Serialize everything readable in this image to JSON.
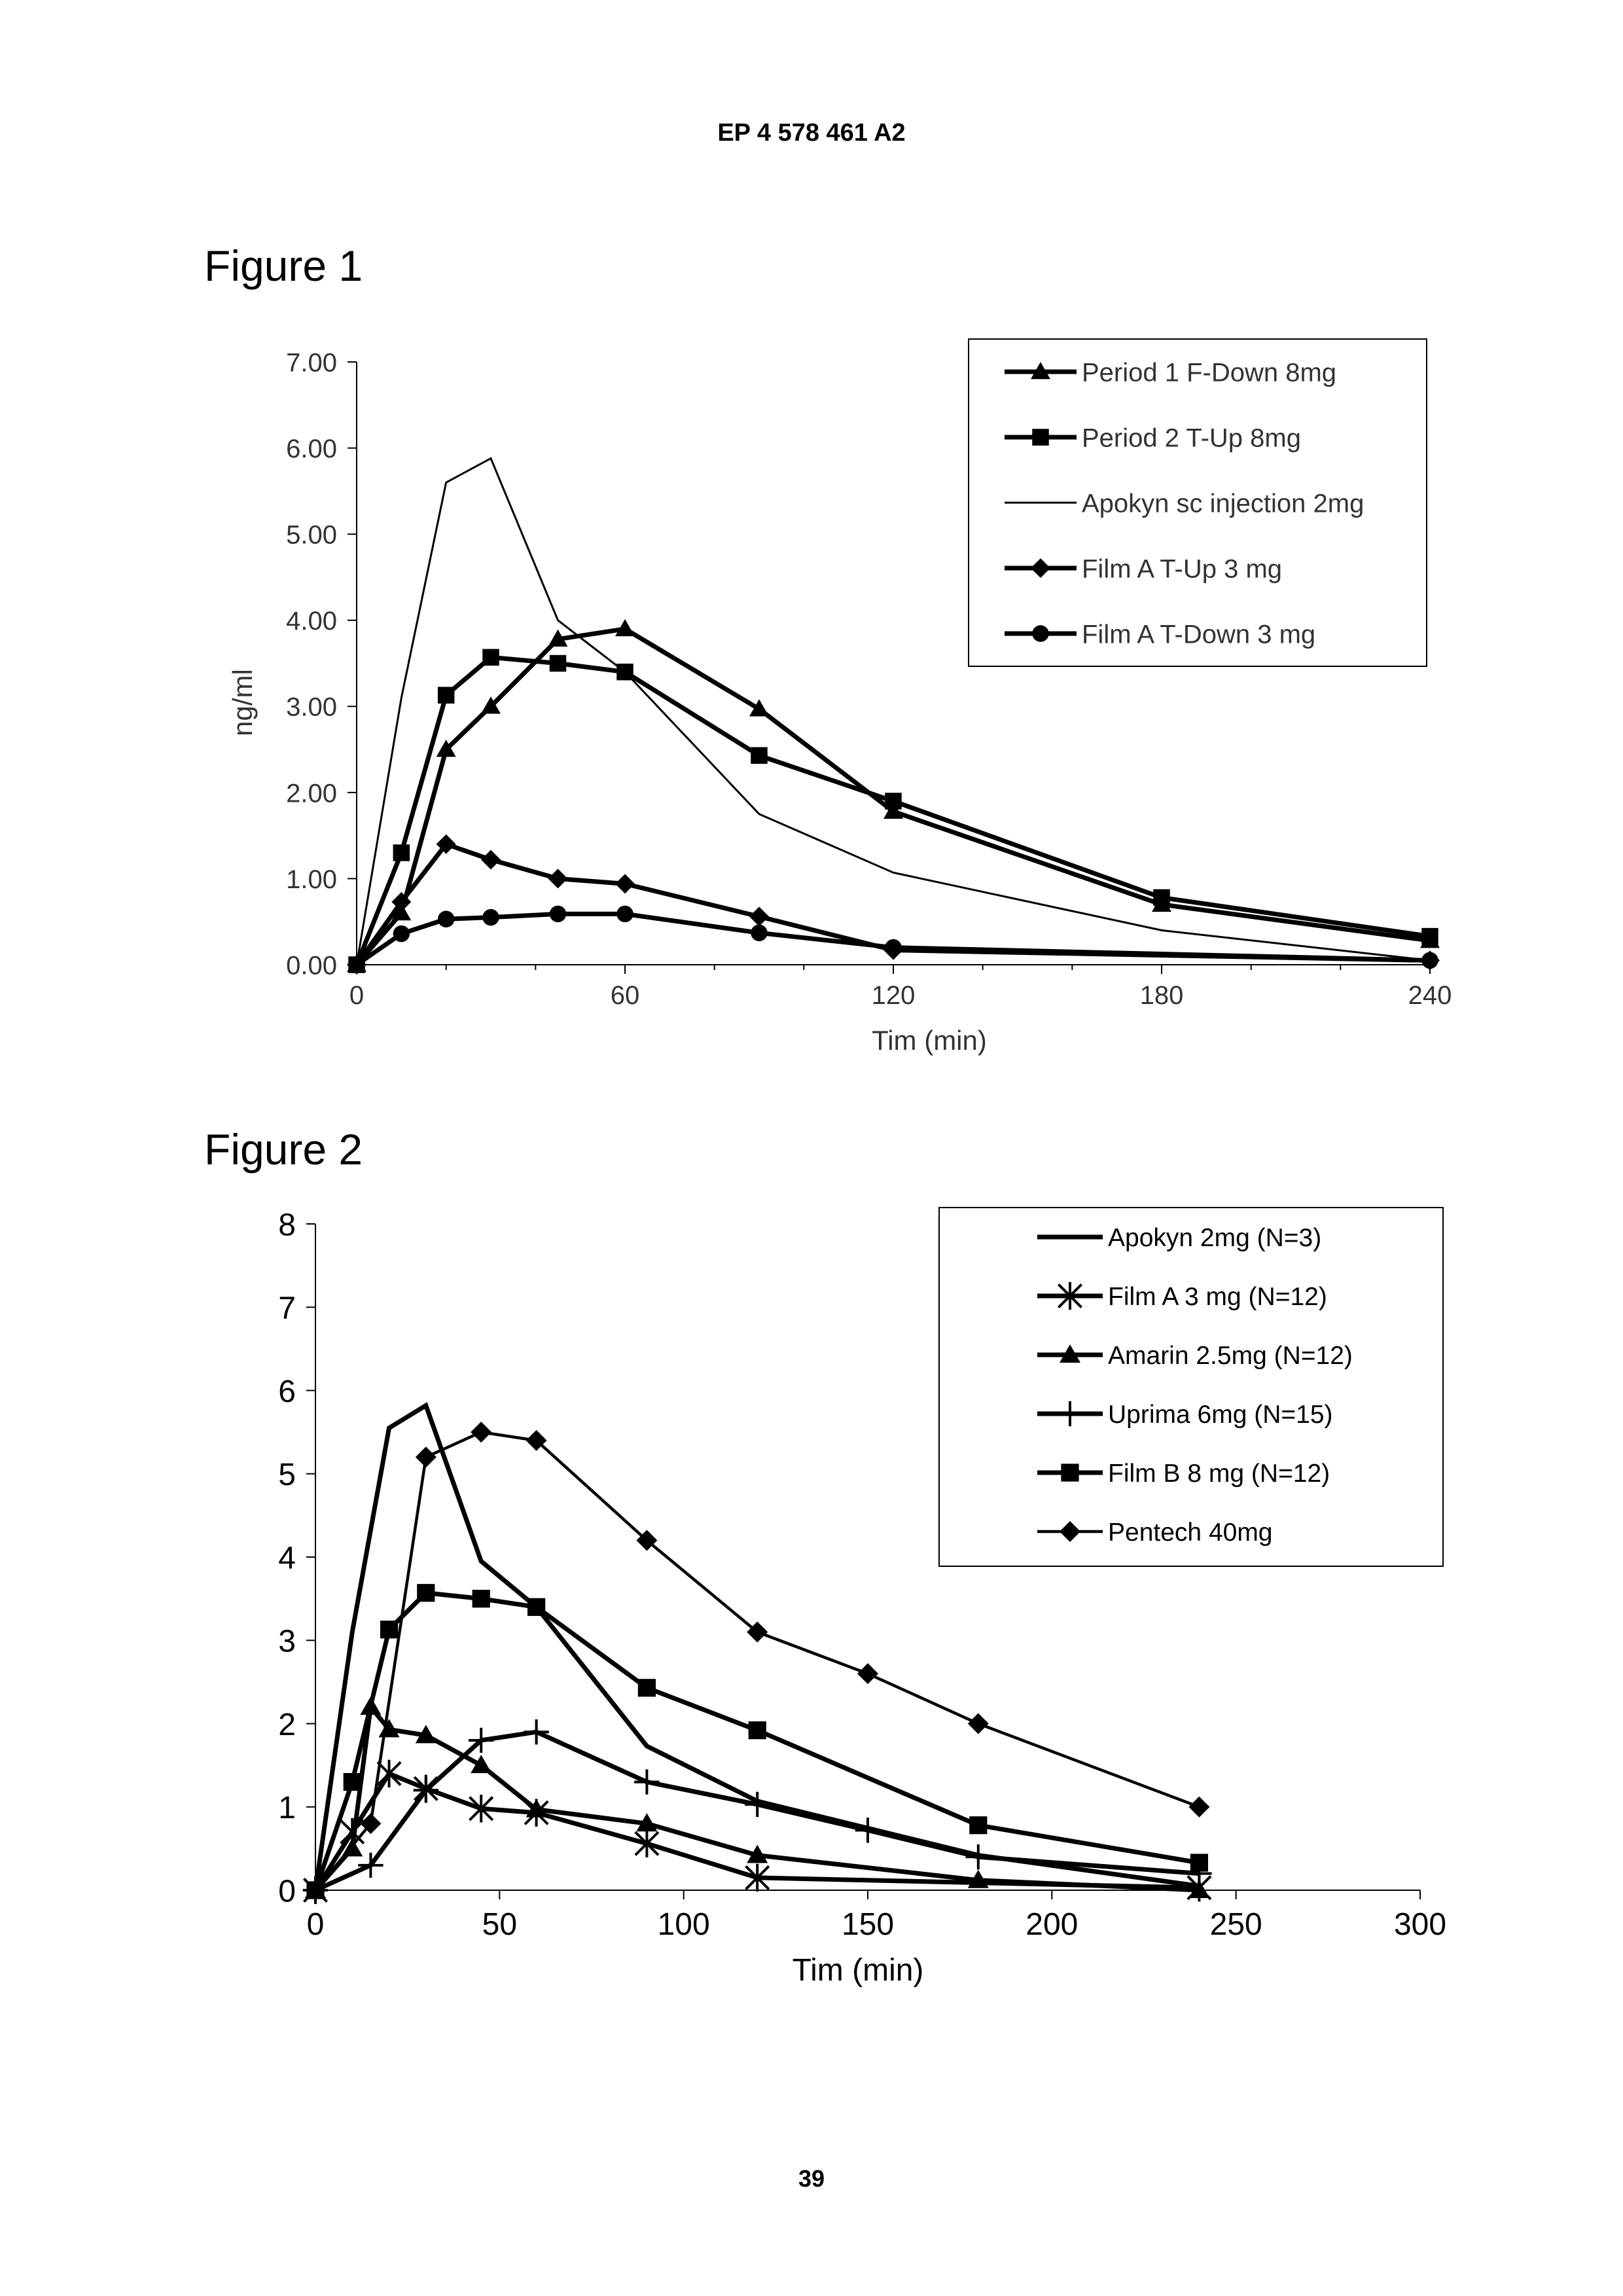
{
  "page": {
    "header": "EP 4 578 461 A2",
    "page_number": "39",
    "figure1_title": "Figure 1",
    "figure2_title": "Figure 2"
  },
  "chart_data": [
    {
      "type": "line",
      "title": "Figure 1",
      "xlabel": "Tim (min)",
      "ylabel": "ng/ml",
      "xlim": [
        0,
        240
      ],
      "ylim": [
        0,
        7
      ],
      "x_ticks": [
        0,
        60,
        120,
        180,
        240
      ],
      "x_tick_labels": [
        "0",
        "60",
        "120",
        "180",
        "240"
      ],
      "y_ticks": [
        0,
        1,
        2,
        3,
        4,
        5,
        6,
        7
      ],
      "y_tick_labels": [
        "0.00",
        "1.00",
        "2.00",
        "3.00",
        "4.00",
        "5.00",
        "6.00",
        "7.00"
      ],
      "legend_position": "top-right",
      "series": [
        {
          "name": "Period 1 F-Down 8mg",
          "marker": "triangle",
          "width": "bold",
          "x": [
            0,
            10,
            20,
            30,
            45,
            60,
            90,
            120,
            180,
            240
          ],
          "y": [
            0,
            0.6,
            2.5,
            3.0,
            3.78,
            3.9,
            2.97,
            1.78,
            0.7,
            0.28
          ]
        },
        {
          "name": "Period 2 T-Up 8mg",
          "marker": "square",
          "width": "bold",
          "x": [
            0,
            10,
            20,
            30,
            45,
            60,
            90,
            120,
            180,
            240
          ],
          "y": [
            0,
            1.3,
            3.13,
            3.57,
            3.5,
            3.4,
            2.43,
            1.9,
            0.78,
            0.33
          ]
        },
        {
          "name": "Apokyn sc injection 2mg",
          "marker": "none",
          "width": "thin",
          "x": [
            0,
            10,
            20,
            30,
            45,
            60,
            90,
            120,
            180,
            240
          ],
          "y": [
            0,
            3.1,
            5.6,
            5.88,
            4.0,
            3.4,
            1.75,
            1.07,
            0.4,
            0.05
          ]
        },
        {
          "name": "Film A T-Up 3 mg",
          "marker": "diamond",
          "width": "bold",
          "x": [
            0,
            10,
            20,
            30,
            45,
            60,
            90,
            120,
            240
          ],
          "y": [
            0,
            0.73,
            1.4,
            1.22,
            1.0,
            0.94,
            0.56,
            0.17,
            0.05
          ]
        },
        {
          "name": "Film A T-Down 3 mg",
          "marker": "circle",
          "width": "bold",
          "x": [
            0,
            10,
            20,
            30,
            45,
            60,
            90,
            120,
            240
          ],
          "y": [
            0,
            0.36,
            0.53,
            0.55,
            0.59,
            0.59,
            0.37,
            0.2,
            0.05
          ]
        }
      ]
    },
    {
      "type": "line",
      "title": "Figure 2",
      "xlabel": "Tim (min)",
      "ylabel": "",
      "xlim": [
        0,
        300
      ],
      "ylim": [
        0,
        8
      ],
      "x_ticks": [
        0,
        50,
        100,
        150,
        200,
        250,
        300
      ],
      "x_tick_labels": [
        "0",
        "50",
        "100",
        "150",
        "200",
        "250",
        "300"
      ],
      "y_ticks": [
        0,
        1,
        2,
        3,
        4,
        5,
        6,
        7,
        8
      ],
      "y_tick_labels": [
        "0",
        "1",
        "2",
        "3",
        "4",
        "5",
        "6",
        "7",
        "8"
      ],
      "legend_position": "top-right",
      "series": [
        {
          "name": "Apokyn 2mg (N=3)",
          "marker": "none",
          "width": "bold",
          "x": [
            0,
            10,
            20,
            30,
            45,
            60,
            90,
            120,
            180,
            240
          ],
          "y": [
            0,
            3.1,
            5.55,
            5.82,
            3.95,
            3.4,
            1.73,
            1.07,
            0.42,
            0.05
          ]
        },
        {
          "name": "Film A 3 mg (N=12)",
          "marker": "star",
          "width": "bold",
          "x": [
            0,
            10,
            20,
            30,
            45,
            60,
            90,
            120,
            240
          ],
          "y": [
            0,
            0.7,
            1.4,
            1.22,
            0.98,
            0.93,
            0.56,
            0.15,
            0.03
          ]
        },
        {
          "name": "Amarin 2.5mg (N=12)",
          "marker": "triangle",
          "width": "bold",
          "x": [
            0,
            10,
            15,
            20,
            30,
            45,
            60,
            90,
            120,
            180,
            240
          ],
          "y": [
            0,
            0.5,
            2.2,
            1.93,
            1.86,
            1.5,
            0.97,
            0.8,
            0.42,
            0.12,
            0.0
          ]
        },
        {
          "name": "Uprima 6mg (N=15)",
          "marker": "plus",
          "width": "bold",
          "x": [
            0,
            15,
            30,
            45,
            60,
            90,
            120,
            150,
            180,
            240
          ],
          "y": [
            0,
            0.3,
            1.2,
            1.8,
            1.9,
            1.3,
            1.03,
            0.72,
            0.4,
            0.2
          ]
        },
        {
          "name": "Film B 8 mg (N=12)",
          "marker": "square",
          "width": "bold",
          "x": [
            0,
            10,
            20,
            30,
            45,
            60,
            90,
            120,
            180,
            240
          ],
          "y": [
            0,
            1.3,
            3.13,
            3.57,
            3.5,
            3.4,
            2.43,
            1.92,
            0.78,
            0.33
          ]
        },
        {
          "name": "Pentech 40mg",
          "marker": "diamond",
          "width": "medium",
          "x": [
            0,
            15,
            30,
            45,
            60,
            90,
            120,
            150,
            180,
            240
          ],
          "y": [
            0,
            0.8,
            5.2,
            5.5,
            5.4,
            4.2,
            3.1,
            2.6,
            2.0,
            1.0
          ]
        }
      ]
    }
  ]
}
